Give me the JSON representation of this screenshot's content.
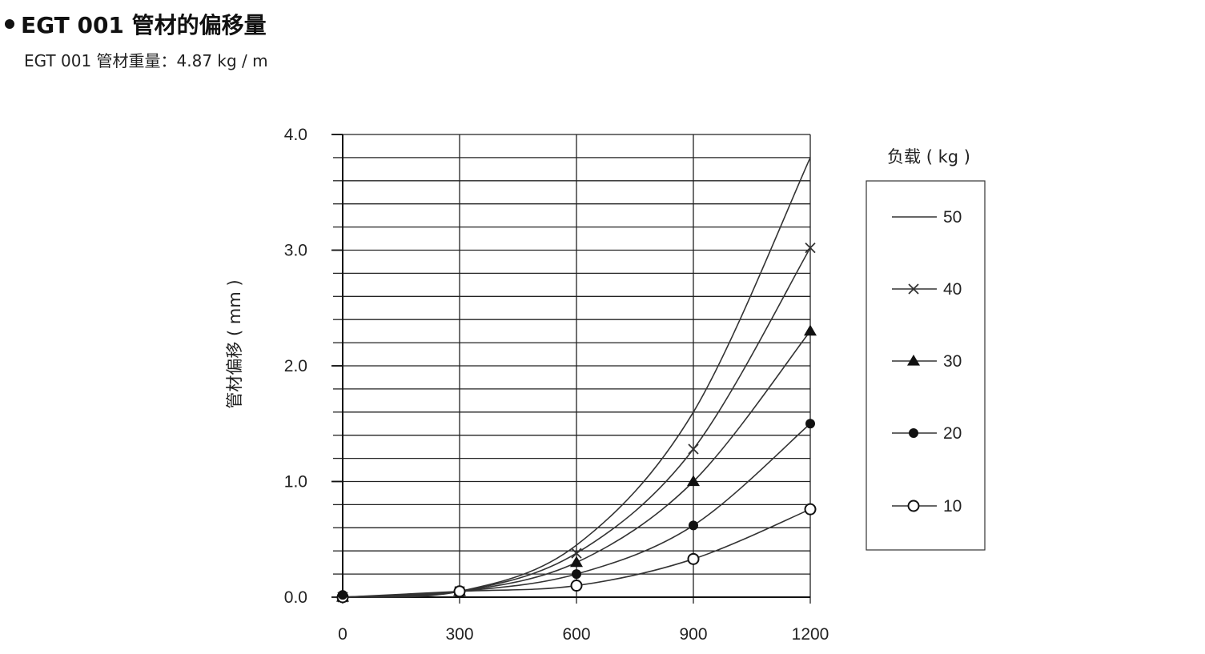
{
  "header": {
    "title": "EGT 001 管材的偏移量",
    "subtitle": "EGT 001 管材重量：4.87 kg / m"
  },
  "chart_data": {
    "type": "line",
    "title": "",
    "xlabel": "",
    "ylabel": "管材偏移 ( mm )",
    "x": [
      0,
      300,
      600,
      900,
      1200
    ],
    "x_ticks": [
      "0",
      "300",
      "600",
      "900",
      "1200"
    ],
    "y_ticks": [
      "0.0",
      "1.0",
      "2.0",
      "3.0",
      "4.0"
    ],
    "xlim": [
      0,
      1200
    ],
    "ylim": [
      0,
      4.0
    ],
    "grid": true,
    "legend_title": "负载 ( kg )",
    "legend_position": "right",
    "line_color": "#333333",
    "series": [
      {
        "name": "50",
        "marker": "none",
        "values": [
          0.0,
          0.05,
          0.45,
          1.6,
          3.8
        ]
      },
      {
        "name": "40",
        "marker": "x",
        "values": [
          0.0,
          0.05,
          0.38,
          1.28,
          3.02
        ]
      },
      {
        "name": "30",
        "marker": "triangle",
        "values": [
          0.0,
          0.05,
          0.3,
          1.0,
          2.3
        ]
      },
      {
        "name": "20",
        "marker": "filled-circle",
        "values": [
          0.0,
          0.05,
          0.2,
          0.62,
          1.5
        ]
      },
      {
        "name": "10",
        "marker": "open-circle",
        "values": [
          0.0,
          0.05,
          0.1,
          0.33,
          0.76
        ]
      }
    ]
  }
}
